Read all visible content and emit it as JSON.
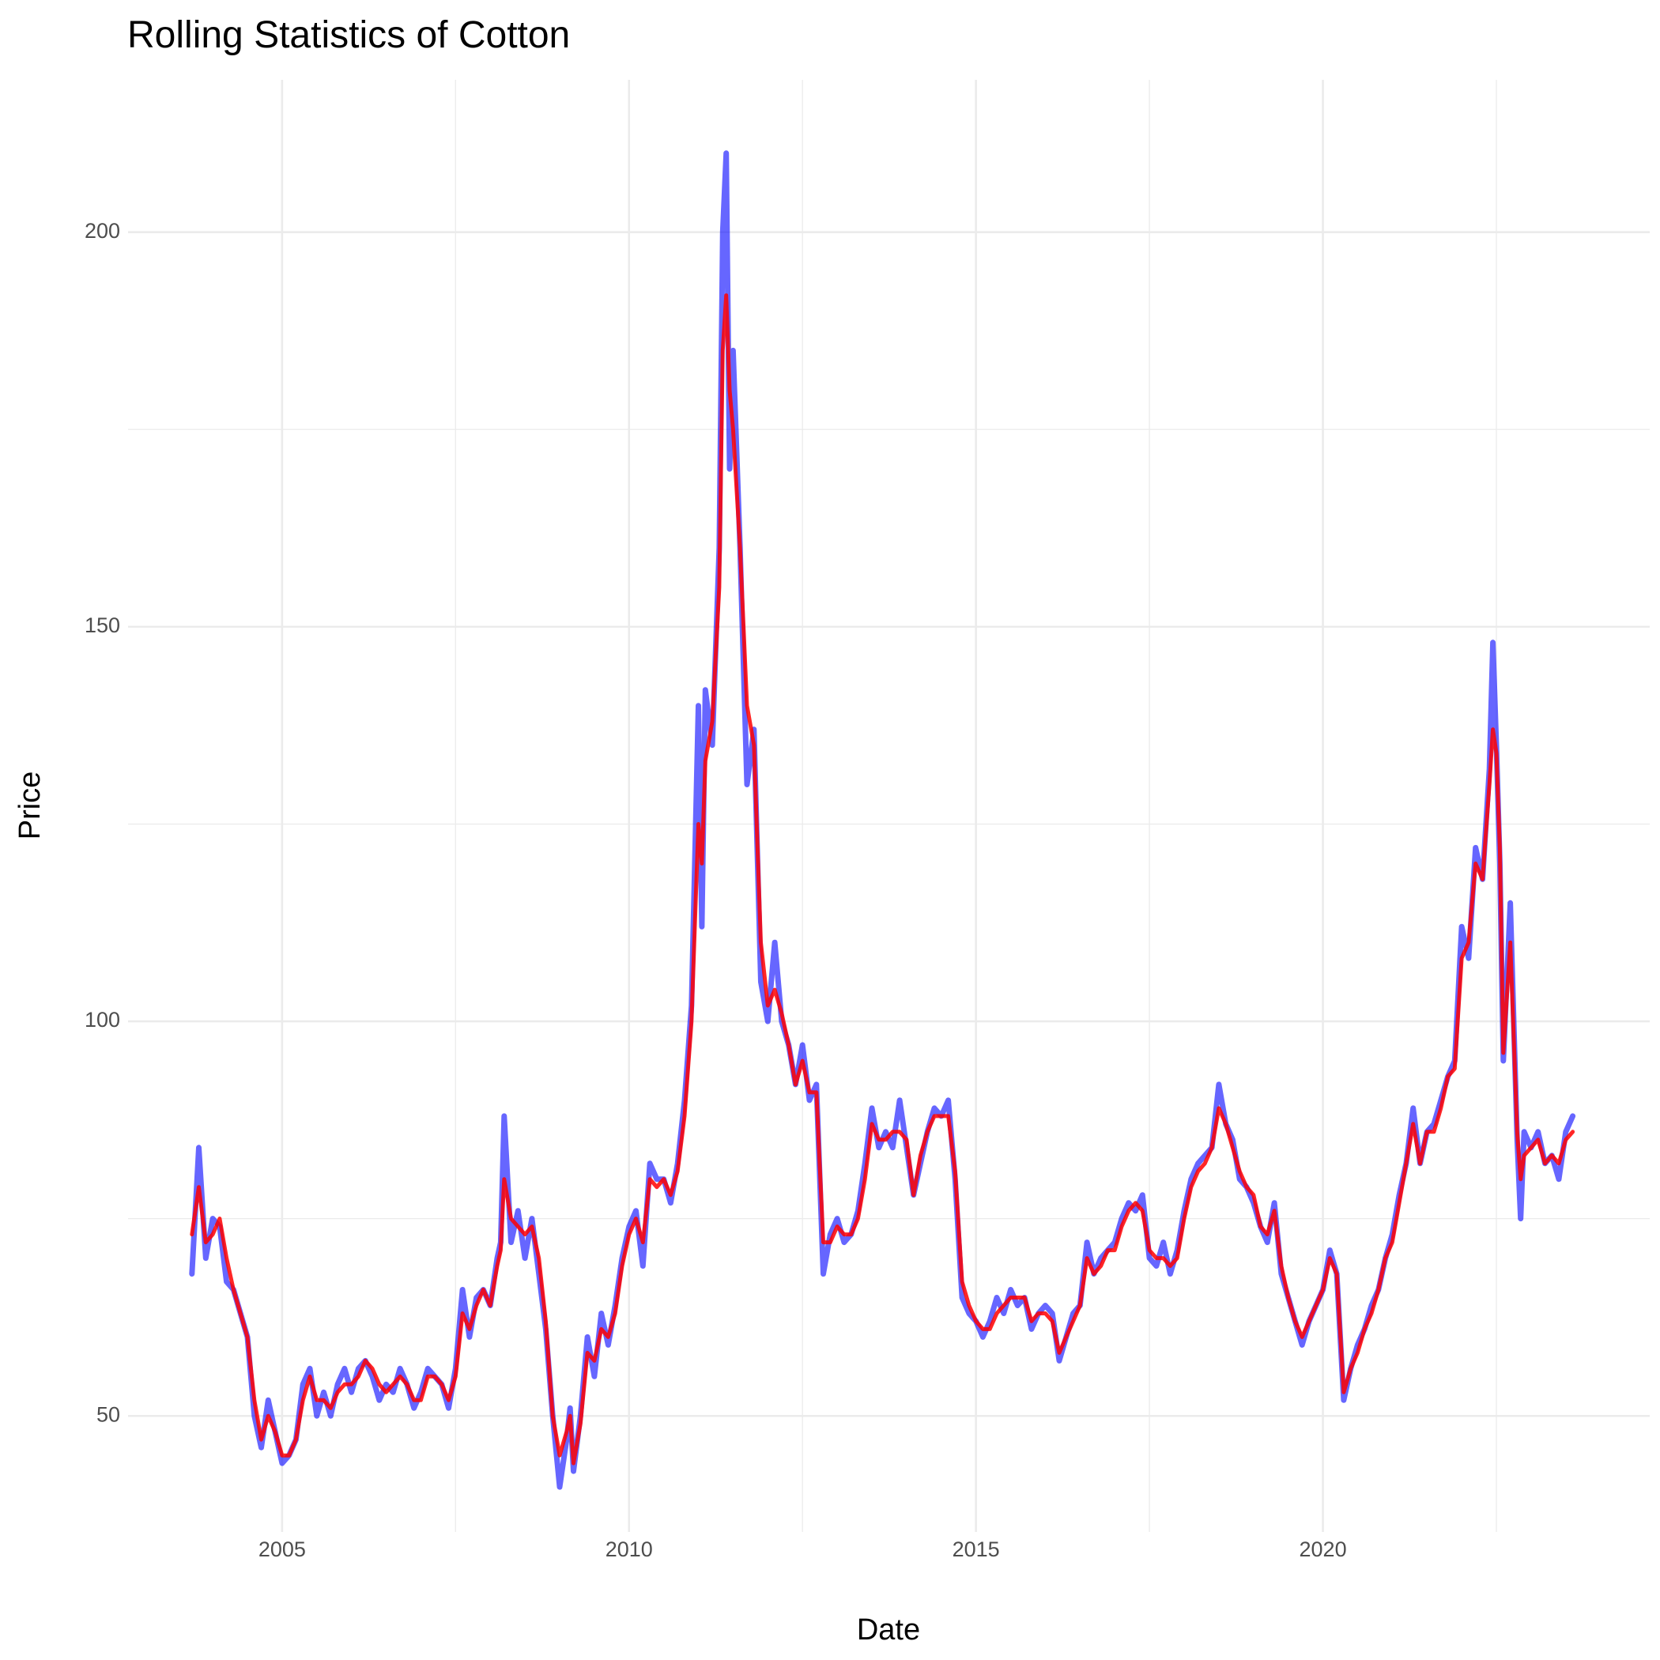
{
  "chart_data": {
    "type": "line",
    "title": "Rolling Statistics of Cotton",
    "x_label": "Date",
    "y_label": "Price",
    "x": [
      2003.7,
      2003.8,
      2003.9,
      2004.0,
      2004.1,
      2004.2,
      2004.3,
      2004.4,
      2004.5,
      2004.6,
      2004.7,
      2004.8,
      2004.9,
      2005.0,
      2005.1,
      2005.2,
      2005.3,
      2005.4,
      2005.5,
      2005.6,
      2005.7,
      2005.8,
      2005.9,
      2006.0,
      2006.1,
      2006.2,
      2006.3,
      2006.4,
      2006.5,
      2006.6,
      2006.7,
      2006.8,
      2006.9,
      2007.0,
      2007.1,
      2007.2,
      2007.3,
      2007.4,
      2007.5,
      2007.6,
      2007.7,
      2007.8,
      2007.9,
      2008.0,
      2008.1,
      2008.15,
      2008.2,
      2008.3,
      2008.4,
      2008.5,
      2008.6,
      2008.7,
      2008.8,
      2008.9,
      2009.0,
      2009.1,
      2009.15,
      2009.2,
      2009.3,
      2009.4,
      2009.5,
      2009.6,
      2009.7,
      2009.8,
      2009.9,
      2010.0,
      2010.1,
      2010.2,
      2010.3,
      2010.4,
      2010.5,
      2010.6,
      2010.7,
      2010.8,
      2010.9,
      2011.0,
      2011.05,
      2011.1,
      2011.2,
      2011.3,
      2011.35,
      2011.4,
      2011.45,
      2011.5,
      2011.6,
      2011.7,
      2011.8,
      2011.9,
      2012.0,
      2012.1,
      2012.2,
      2012.3,
      2012.4,
      2012.5,
      2012.6,
      2012.7,
      2012.8,
      2012.9,
      2013.0,
      2013.1,
      2013.2,
      2013.3,
      2013.4,
      2013.5,
      2013.6,
      2013.7,
      2013.8,
      2013.9,
      2014.0,
      2014.1,
      2014.2,
      2014.3,
      2014.4,
      2014.5,
      2014.6,
      2014.7,
      2014.8,
      2014.9,
      2015.0,
      2015.1,
      2015.2,
      2015.3,
      2015.4,
      2015.5,
      2015.6,
      2015.7,
      2015.8,
      2015.9,
      2016.0,
      2016.1,
      2016.2,
      2016.3,
      2016.4,
      2016.5,
      2016.6,
      2016.7,
      2016.8,
      2016.9,
      2017.0,
      2017.1,
      2017.2,
      2017.3,
      2017.4,
      2017.5,
      2017.6,
      2017.7,
      2017.8,
      2017.9,
      2018.0,
      2018.1,
      2018.2,
      2018.3,
      2018.4,
      2018.5,
      2018.6,
      2018.7,
      2018.8,
      2018.9,
      2019.0,
      2019.1,
      2019.2,
      2019.3,
      2019.4,
      2019.5,
      2019.6,
      2019.7,
      2019.8,
      2019.9,
      2020.0,
      2020.1,
      2020.2,
      2020.3,
      2020.4,
      2020.5,
      2020.6,
      2020.7,
      2020.8,
      2020.9,
      2021.0,
      2021.1,
      2021.2,
      2021.3,
      2021.4,
      2021.5,
      2021.6,
      2021.7,
      2021.8,
      2021.9,
      2022.0,
      2022.1,
      2022.2,
      2022.3,
      2022.4,
      2022.45,
      2022.5,
      2022.55,
      2022.6,
      2022.7,
      2022.8,
      2022.85,
      2022.9,
      2023.0,
      2023.1,
      2023.2,
      2023.3,
      2023.4,
      2023.5,
      2023.6
    ],
    "series": [
      {
        "color": "#0000ff",
        "opacity": 0.6,
        "width": 7,
        "values": [
          68,
          84,
          70,
          75,
          74,
          67,
          66,
          63,
          60,
          50,
          46,
          52,
          48,
          44,
          45,
          47,
          54,
          56,
          50,
          53,
          50,
          54,
          56,
          53,
          56,
          57,
          55,
          52,
          54,
          53,
          56,
          54,
          51,
          53,
          56,
          55,
          54,
          51,
          56,
          66,
          60,
          65,
          66,
          64,
          70,
          72,
          88,
          72,
          76,
          70,
          75,
          68,
          61,
          50,
          41,
          47,
          51,
          43,
          50,
          60,
          55,
          63,
          59,
          64,
          70,
          74,
          76,
          69,
          82,
          80,
          80,
          77,
          82,
          90,
          102,
          140,
          112,
          142,
          135,
          160,
          200,
          210,
          170,
          185,
          160,
          130,
          137,
          105,
          100,
          110,
          100,
          97,
          92,
          97,
          90,
          92,
          68,
          73,
          75,
          72,
          73,
          76,
          82,
          89,
          84,
          86,
          84,
          90,
          84,
          78,
          82,
          86,
          89,
          88,
          90,
          80,
          65,
          63,
          62,
          60,
          62,
          65,
          63,
          66,
          64,
          65,
          61,
          63,
          64,
          63,
          57,
          60,
          63,
          64,
          72,
          68,
          70,
          71,
          72,
          75,
          77,
          76,
          78,
          70,
          69,
          72,
          68,
          71,
          76,
          80,
          82,
          83,
          84,
          92,
          87,
          85,
          80,
          79,
          77,
          74,
          72,
          77,
          68,
          65,
          62,
          59,
          62,
          64,
          66,
          71,
          68,
          52,
          56,
          59,
          61,
          64,
          66,
          70,
          73,
          78,
          82,
          89,
          82,
          86,
          87,
          90,
          93,
          95,
          112,
          108,
          122,
          118,
          132,
          148,
          135,
          120,
          95,
          115,
          85,
          75,
          86,
          84,
          86,
          82,
          83,
          80,
          86,
          88
        ]
      },
      {
        "color": "#ff0000",
        "opacity": 0.85,
        "width": 5,
        "values": [
          73,
          79,
          72,
          73,
          75,
          70,
          66,
          63,
          60,
          52,
          47,
          50,
          48,
          45,
          45,
          47,
          52,
          55,
          52,
          52,
          51,
          53,
          54,
          54,
          55,
          57,
          56,
          54,
          53,
          54,
          55,
          54,
          52,
          52,
          55,
          55,
          54,
          52,
          55,
          63,
          61,
          64,
          66,
          64,
          69,
          71,
          80,
          75,
          74,
          73,
          74,
          70,
          62,
          50,
          45,
          48,
          50,
          44,
          49,
          58,
          57,
          61,
          60,
          63,
          69,
          73,
          75,
          72,
          80,
          79,
          80,
          78,
          81,
          88,
          100,
          125,
          120,
          133,
          138,
          155,
          185,
          192,
          180,
          175,
          160,
          140,
          135,
          110,
          102,
          104,
          101,
          97,
          92,
          95,
          91,
          91,
          72,
          72,
          74,
          73,
          73,
          75,
          80,
          87,
          85,
          85,
          86,
          86,
          85,
          78,
          83,
          86,
          88,
          88,
          88,
          81,
          67,
          64,
          62,
          61,
          61,
          63,
          64,
          65,
          65,
          65,
          62,
          63,
          63,
          62,
          58,
          60,
          62,
          64,
          70,
          68,
          69,
          71,
          71,
          74,
          76,
          77,
          76,
          71,
          70,
          70,
          69,
          70,
          75,
          79,
          81,
          82,
          84,
          89,
          87,
          84,
          81,
          79,
          78,
          74,
          73,
          76,
          69,
          65,
          62,
          60,
          62,
          64,
          66,
          70,
          68,
          53,
          56,
          58,
          61,
          63,
          66,
          70,
          72,
          77,
          82,
          87,
          82,
          86,
          86,
          89,
          93,
          94,
          108,
          110,
          120,
          118,
          130,
          137,
          134,
          122,
          96,
          110,
          86,
          80,
          83,
          84,
          85,
          82,
          83,
          82,
          85,
          86
        ]
      }
    ],
    "xlim": [
      2002.78,
      2024.71
    ],
    "xticks": [
      2005,
      2010,
      2015,
      2020
    ],
    "x_minor_ticks": [
      2002.5,
      2007.5,
      2012.5,
      2017.5,
      2022.5
    ],
    "ylim": [
      35.3,
      219.3
    ],
    "yticks": [
      50,
      100,
      150,
      200
    ],
    "y_minor_ticks": [
      75,
      125,
      175
    ],
    "grid": true
  }
}
